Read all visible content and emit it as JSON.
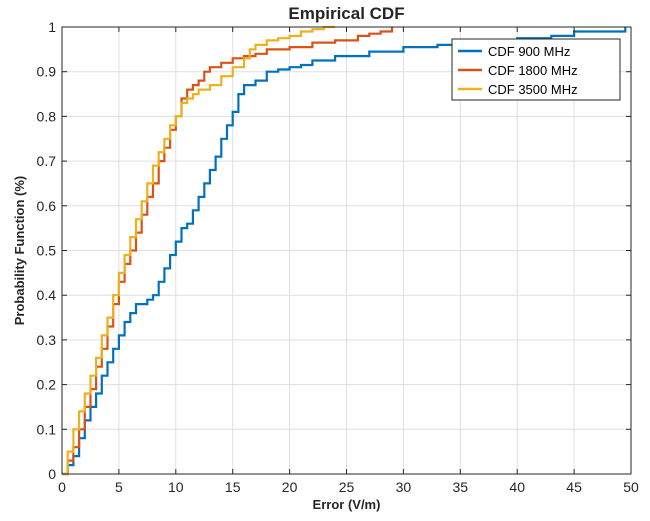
{
  "chart_data": {
    "type": "line",
    "step": true,
    "title": "Empirical CDF",
    "xlabel": "Error (V/m)",
    "ylabel": "Probability Function (%)",
    "xlim": [
      0,
      50
    ],
    "ylim": [
      0,
      1
    ],
    "xticks": [
      "0",
      "5",
      "10",
      "15",
      "20",
      "25",
      "30",
      "35",
      "40",
      "45",
      "50"
    ],
    "yticks": [
      "0",
      "0.1",
      "0.2",
      "0.3",
      "0.4",
      "0.5",
      "0.6",
      "0.7",
      "0.8",
      "0.9",
      "1"
    ],
    "grid": true,
    "legend_position": "top-right",
    "series": [
      {
        "name": "CDF 900 MHz",
        "color": "#0072BD",
        "x": [
          0,
          0.5,
          1,
          1.5,
          2,
          2.5,
          3,
          3.5,
          4,
          4.5,
          5,
          5.5,
          6,
          6.5,
          7,
          7.5,
          8,
          8.5,
          9,
          9.5,
          10,
          10.5,
          11,
          11.5,
          12,
          12.5,
          13,
          13.5,
          14,
          14.5,
          15,
          15.5,
          16,
          17,
          18,
          19,
          20,
          21,
          22,
          24,
          27,
          30,
          33,
          36,
          40,
          43,
          45,
          48,
          49.5
        ],
        "y": [
          0,
          0.02,
          0.04,
          0.08,
          0.12,
          0.15,
          0.18,
          0.22,
          0.25,
          0.28,
          0.31,
          0.34,
          0.36,
          0.38,
          0.38,
          0.39,
          0.4,
          0.43,
          0.46,
          0.49,
          0.52,
          0.55,
          0.56,
          0.59,
          0.62,
          0.65,
          0.68,
          0.71,
          0.75,
          0.78,
          0.81,
          0.85,
          0.87,
          0.88,
          0.9,
          0.905,
          0.91,
          0.915,
          0.925,
          0.935,
          0.945,
          0.955,
          0.96,
          0.97,
          0.975,
          0.98,
          0.99,
          0.99,
          1.0
        ]
      },
      {
        "name": "CDF 1800 MHz",
        "color": "#D95319",
        "x": [
          0,
          0.5,
          1,
          1.5,
          2,
          2.5,
          3,
          3.5,
          4,
          4.5,
          5,
          5.5,
          6,
          6.5,
          7,
          7.5,
          8,
          8.5,
          9,
          9.5,
          10,
          10.5,
          11,
          11.5,
          12,
          12.5,
          13,
          14,
          15,
          16,
          17,
          18,
          20,
          22,
          24,
          26,
          27,
          28,
          29
        ],
        "y": [
          0,
          0.03,
          0.06,
          0.1,
          0.15,
          0.19,
          0.24,
          0.28,
          0.33,
          0.38,
          0.43,
          0.47,
          0.5,
          0.54,
          0.58,
          0.62,
          0.65,
          0.7,
          0.73,
          0.77,
          0.8,
          0.84,
          0.86,
          0.87,
          0.88,
          0.9,
          0.91,
          0.92,
          0.93,
          0.935,
          0.94,
          0.95,
          0.955,
          0.965,
          0.97,
          0.98,
          0.985,
          0.99,
          1.0
        ]
      },
      {
        "name": "CDF 3500 MHz",
        "color": "#EDB120",
        "x": [
          0,
          0.5,
          1,
          1.5,
          2,
          2.5,
          3,
          3.5,
          4,
          4.5,
          5,
          5.5,
          6,
          6.5,
          7,
          7.5,
          8,
          8.5,
          9,
          9.5,
          10,
          10.5,
          11,
          11.5,
          12,
          12.5,
          13,
          14,
          15,
          16,
          16.5,
          17,
          18,
          19,
          20,
          21,
          22,
          23,
          24
        ],
        "y": [
          0,
          0.05,
          0.1,
          0.14,
          0.18,
          0.22,
          0.26,
          0.31,
          0.35,
          0.4,
          0.45,
          0.49,
          0.53,
          0.57,
          0.61,
          0.65,
          0.69,
          0.72,
          0.75,
          0.78,
          0.8,
          0.83,
          0.84,
          0.85,
          0.86,
          0.86,
          0.87,
          0.89,
          0.91,
          0.93,
          0.95,
          0.96,
          0.97,
          0.975,
          0.98,
          0.99,
          0.995,
          1.0,
          1.0
        ]
      }
    ]
  }
}
